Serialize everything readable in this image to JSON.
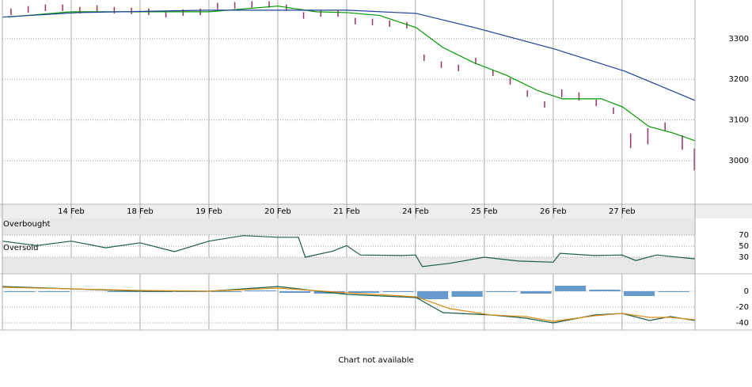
{
  "chart_data": [
    {
      "type": "stock",
      "xlim": [
        0,
        10.06
      ],
      "xticks": [
        {
          "value": 1,
          "label": "14 Feb"
        },
        {
          "value": 2,
          "label": "18 Feb"
        },
        {
          "value": 3,
          "label": "19 Feb"
        },
        {
          "value": 4,
          "label": "20 Feb"
        },
        {
          "value": 5,
          "label": "21 Feb"
        },
        {
          "value": 6,
          "label": "24 Feb"
        },
        {
          "value": 7,
          "label": "25 Feb"
        },
        {
          "value": 8,
          "label": "26 Feb"
        },
        {
          "value": 9,
          "label": "27 Feb"
        }
      ],
      "ylim": [
        2893,
        3395
      ],
      "yticks": [
        3000,
        3100,
        3200,
        3300
      ],
      "grid": true,
      "series": [
        {
          "type": "range",
          "color": "#993366",
          "x": [
            0.125,
            0.375,
            0.625,
            0.875,
            1.125,
            1.375,
            1.625,
            1.875,
            2.125,
            2.375,
            2.625,
            2.875,
            3.125,
            3.375,
            3.625,
            3.875,
            4.125,
            4.375,
            4.625,
            4.875,
            5.125,
            5.375,
            5.625,
            5.875,
            6.125,
            6.375,
            6.625,
            6.875,
            7.125,
            7.375,
            7.625,
            7.875,
            8.125,
            8.375,
            8.625,
            8.875,
            9.125,
            9.375,
            9.625,
            9.875,
            10.05
          ],
          "high": [
            3374,
            3380,
            3384,
            3384,
            3378,
            3382,
            3378,
            3376,
            3374,
            3368,
            3372,
            3374,
            3388,
            3390,
            3392,
            3392,
            3384,
            3365,
            3370,
            3370,
            3351,
            3349,
            3345,
            3341,
            3261,
            3244,
            3236,
            3253,
            3224,
            3203,
            3173,
            3146,
            3175,
            3168,
            3150,
            3131,
            3067,
            3080,
            3094,
            3063,
            3030
          ],
          "low": [
            3358,
            3364,
            3368,
            3368,
            3362,
            3366,
            3362,
            3360,
            3358,
            3352,
            3356,
            3358,
            3372,
            3374,
            3376,
            3376,
            3368,
            3349,
            3354,
            3354,
            3335,
            3333,
            3329,
            3325,
            3245,
            3228,
            3220,
            3237,
            3208,
            3187,
            3157,
            3130,
            3155,
            3148,
            3134,
            3115,
            3031,
            3040,
            3074,
            3027,
            2976
          ]
        },
        {
          "type": "line",
          "color": "#009900",
          "x": [
            0.08,
            1.0,
            2.0,
            3.0,
            4.0,
            4.56,
            5.01,
            5.48,
            6.01,
            6.4,
            6.86,
            7.32,
            7.78,
            8.13,
            8.7,
            9.01,
            9.39,
            9.74,
            10.06
          ],
          "values": [
            3353,
            3366,
            3366,
            3366,
            3380,
            3366,
            3364,
            3357,
            3327,
            3278,
            3240,
            3210,
            3172,
            3152,
            3152,
            3132,
            3084,
            3068,
            3049
          ]
        },
        {
          "type": "line",
          "color": "#1f3f99",
          "x": [
            0.0,
            1.1,
            3.0,
            5.01,
            6.01,
            6.86,
            8.01,
            9.04,
            10.06
          ],
          "values": [
            3353,
            3364,
            3370,
            3370,
            3362,
            3327,
            3275,
            3220,
            3148
          ]
        }
      ]
    },
    {
      "type": "oscillator",
      "ylim": [
        0,
        100
      ],
      "yticks": [
        30,
        50,
        70
      ],
      "annotations": [
        "Overbought",
        "Oversold"
      ],
      "series": [
        {
          "type": "line",
          "color": "#1a5e4a",
          "x": [
            0,
            0.5,
            1,
            1.5,
            2,
            2.5,
            3,
            3.5,
            4,
            4.3,
            4.4,
            4.8,
            5,
            5.2,
            5.8,
            6.0,
            6.1,
            6.5,
            7.0,
            7.5,
            8.0,
            8.1,
            8.6,
            9.0,
            9.2,
            9.5,
            10.06
          ],
          "values": [
            59,
            51,
            59,
            47,
            56,
            40,
            59,
            69,
            66,
            66,
            30,
            41,
            51,
            34,
            33,
            34,
            13,
            19,
            30,
            23,
            21,
            37,
            33,
            34,
            24,
            34,
            27
          ]
        }
      ]
    },
    {
      "type": "oscillator",
      "ylim": [
        -49,
        22
      ],
      "yticks": [
        0,
        -20,
        -40
      ],
      "series": [
        {
          "type": "bar",
          "color": "#6699cc",
          "x": [
            0.25,
            0.75,
            1.25,
            1.75,
            2.25,
            2.75,
            3.25,
            3.75,
            4.25,
            4.75,
            5.25,
            5.75,
            6.25,
            6.75,
            7.25,
            7.75,
            8.25,
            8.75,
            9.25,
            9.75
          ],
          "values": [
            -1,
            -1,
            0,
            -1,
            -1,
            -1,
            -1,
            1,
            -2,
            -3,
            -2,
            -1,
            -10,
            -7,
            -1,
            -3,
            7,
            2,
            -6,
            -1
          ]
        },
        {
          "type": "line",
          "color": "#1a5e4a",
          "x": [
            0,
            1,
            2,
            3,
            4,
            5.01,
            6.01,
            6.4,
            7.1,
            7.6,
            8.0,
            8.6,
            9.0,
            9.4,
            9.7,
            10.06
          ],
          "values": [
            6,
            3,
            0,
            0,
            6,
            -4,
            -8,
            -27,
            -30,
            -34,
            -40,
            -30,
            -28,
            -37,
            -32,
            -37
          ]
        },
        {
          "type": "line",
          "color": "#d98c1a",
          "x": [
            0,
            1,
            2,
            3,
            4,
            5.01,
            6.01,
            6.5,
            7.1,
            7.6,
            8.0,
            8.6,
            9.0,
            9.4,
            9.7,
            10.06
          ],
          "values": [
            5,
            3,
            1,
            0,
            4,
            -2,
            -7,
            -22,
            -30,
            -32,
            -38,
            -31,
            -28,
            -33,
            -33,
            -36
          ]
        }
      ]
    }
  ],
  "footer_message": "Chart not available"
}
